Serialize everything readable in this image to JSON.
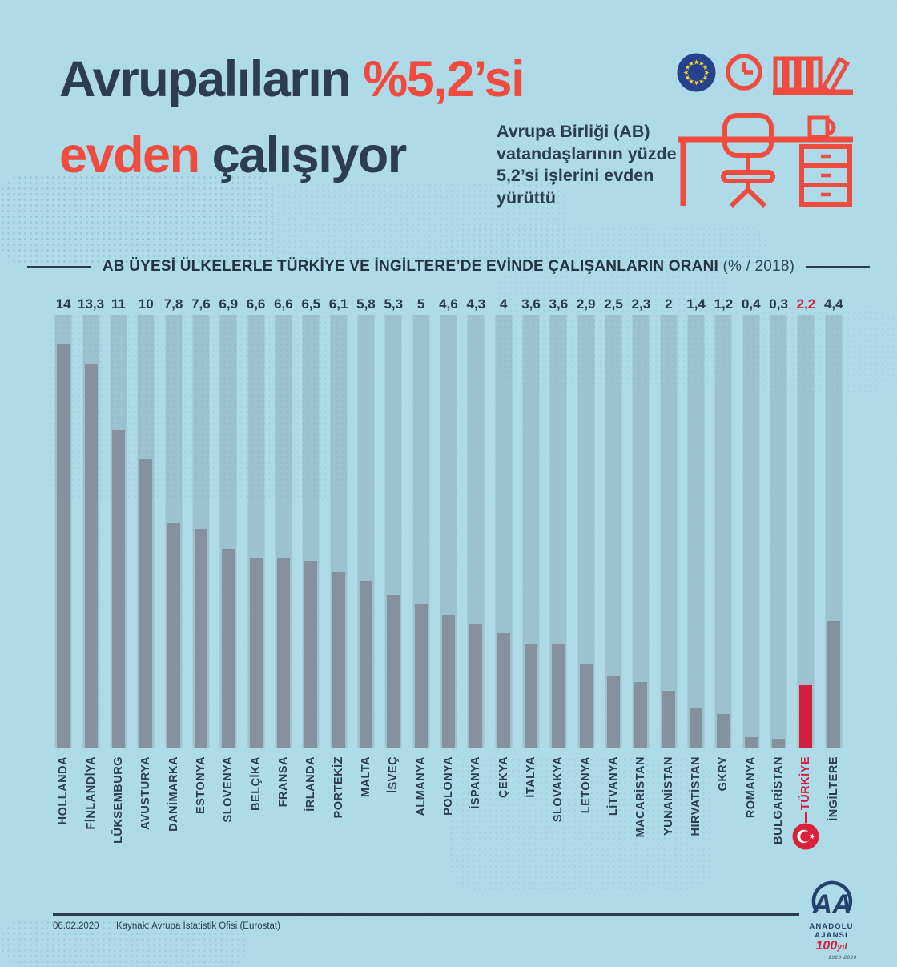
{
  "title": {
    "line1_dark": "Avrupalıların ",
    "line1_red": "%5,2’si",
    "line2_red": "evden",
    "line2_dark": " çalışıyor"
  },
  "subtitle": "Avrupa Birliği (AB)\nvatandaşlarının yüzde\n5,2’si işlerini evden\nyürüttü",
  "chart_data": {
    "type": "bar",
    "title": "AB ÜYESİ ÜLKELERLE TÜRKİYE VE İNGİLTERE’DE EVİNDE ÇALIŞANLARIN ORANI",
    "title_suffix": "(% / 2018)",
    "categories": [
      "HOLLANDA",
      "FİNLANDİYA",
      "LÜKSEMBURG",
      "AVUSTURYA",
      "DANİMARKA",
      "ESTONYA",
      "SLOVENYA",
      "BELÇİKA",
      "FRANSA",
      "İRLANDA",
      "PORTEKİZ",
      "MALTA",
      "İSVEÇ",
      "ALMANYA",
      "POLONYA",
      "İSPANYA",
      "ÇEKYA",
      "İTALYA",
      "SLOVAKYA",
      "LETONYA",
      "LİTVANYA",
      "MACARİSTAN",
      "YUNANİSTAN",
      "HIRVATİSTAN",
      "GKRY",
      "ROMANYA",
      "BULGARİSTAN",
      "TÜRKİYE",
      "İNGİLTERE"
    ],
    "values": [
      14,
      13.3,
      11,
      10,
      7.8,
      7.6,
      6.9,
      6.6,
      6.6,
      6.5,
      6.1,
      5.8,
      5.3,
      5,
      4.6,
      4.3,
      4,
      3.6,
      3.6,
      2.9,
      2.5,
      2.3,
      2,
      1.4,
      1.2,
      0.4,
      0.3,
      2.2,
      4.4
    ],
    "value_labels": [
      "14",
      "13,3",
      "11",
      "10",
      "7,8",
      "7,6",
      "6,9",
      "6,6",
      "6,6",
      "6,5",
      "6,1",
      "5,8",
      "5,3",
      "5",
      "4,6",
      "4,3",
      "4",
      "3,6",
      "3,6",
      "2,9",
      "2,5",
      "2,3",
      "2",
      "1,4",
      "1,2",
      "0,4",
      "0,3",
      "2,2",
      "4,4"
    ],
    "highlight_index": 27,
    "ylim": [
      0,
      15
    ],
    "legend": "none",
    "grid": false,
    "bar_color": "#86919f",
    "highlight_color": "#d31f3d",
    "track_color": "rgba(116,136,150,0.30)"
  },
  "colors": {
    "background": "#aedae8",
    "navy": "#2d3c4e",
    "accent_red": "#ef4c3f",
    "turkey_red": "#d31f3d",
    "eu_blue": "#26418e",
    "star_yellow": "#f6d32d"
  },
  "icons": [
    "eu-flag-icon",
    "clock-icon",
    "bookshelf-icon",
    "desk-icon",
    "turkey-flag-icon"
  ],
  "footer": {
    "date": "06.02.2020",
    "source": "Kaynak: Avrupa İstatistik Ofisi (Eurostat)"
  },
  "logo": {
    "monogram": "AA",
    "name": "ANADOLU AJANSI",
    "anniversary_number": "100",
    "anniversary_suffix": "yıl",
    "years": "1920-2020"
  }
}
